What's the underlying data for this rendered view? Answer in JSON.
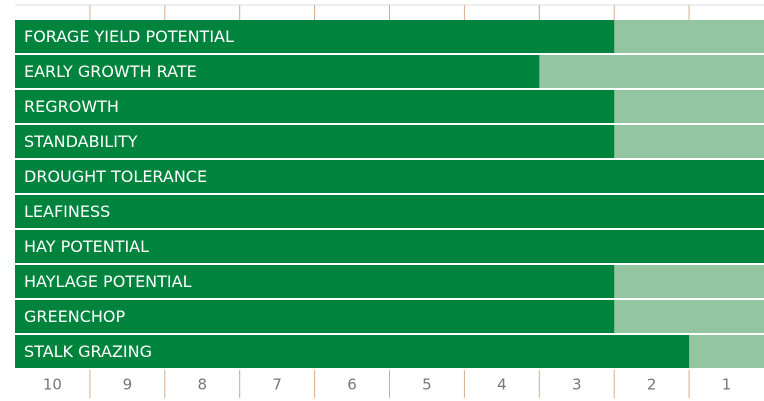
{
  "chart_data": {
    "type": "bar",
    "orientation": "horizontal",
    "categories": [
      "FORAGE YIELD POTENTIAL",
      "EARLY GROWTH RATE",
      "REGROWTH",
      "STANDABILITY",
      "DROUGHT TOLERANCE",
      "LEAFINESS",
      "HAY POTENTIAL",
      "HAYLAGE POTENTIAL",
      "GREENCHOP",
      "STALK GRAZING"
    ],
    "values": [
      3,
      4,
      3,
      3,
      1,
      1,
      1,
      3,
      3,
      2
    ],
    "color": "#00843d",
    "track_color": "#93c5a0",
    "xlim": [
      10.5,
      0.5
    ],
    "xticks": [
      10,
      9,
      8,
      7,
      6,
      5,
      4,
      3,
      2,
      1
    ]
  }
}
